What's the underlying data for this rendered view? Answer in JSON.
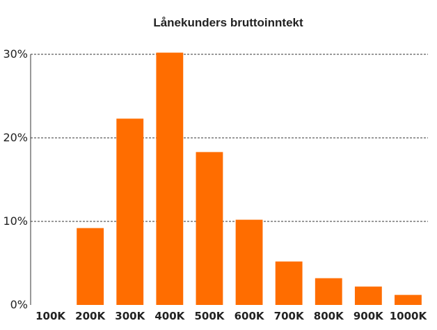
{
  "chart_data": {
    "type": "bar",
    "title": "Lånekunders bruttoinntekt",
    "xlabel": "",
    "ylabel": "",
    "categories": [
      "100K",
      "200K",
      "300K",
      "400K",
      "500K",
      "600K",
      "700K",
      "800K",
      "900K",
      "1000K"
    ],
    "values": [
      0,
      9.2,
      22.3,
      30.2,
      18.3,
      10.2,
      5.2,
      3.2,
      2.2,
      1.2
    ],
    "unit": "%",
    "ylim": [
      0,
      30
    ],
    "yticks": [
      {
        "value": 0,
        "label": "0%"
      },
      {
        "value": 10,
        "label": "10%"
      },
      {
        "value": 20,
        "label": "20%"
      },
      {
        "value": 30,
        "label": "30%"
      }
    ],
    "grid": true,
    "legend": "none",
    "bar_color": "#FF6D00"
  }
}
